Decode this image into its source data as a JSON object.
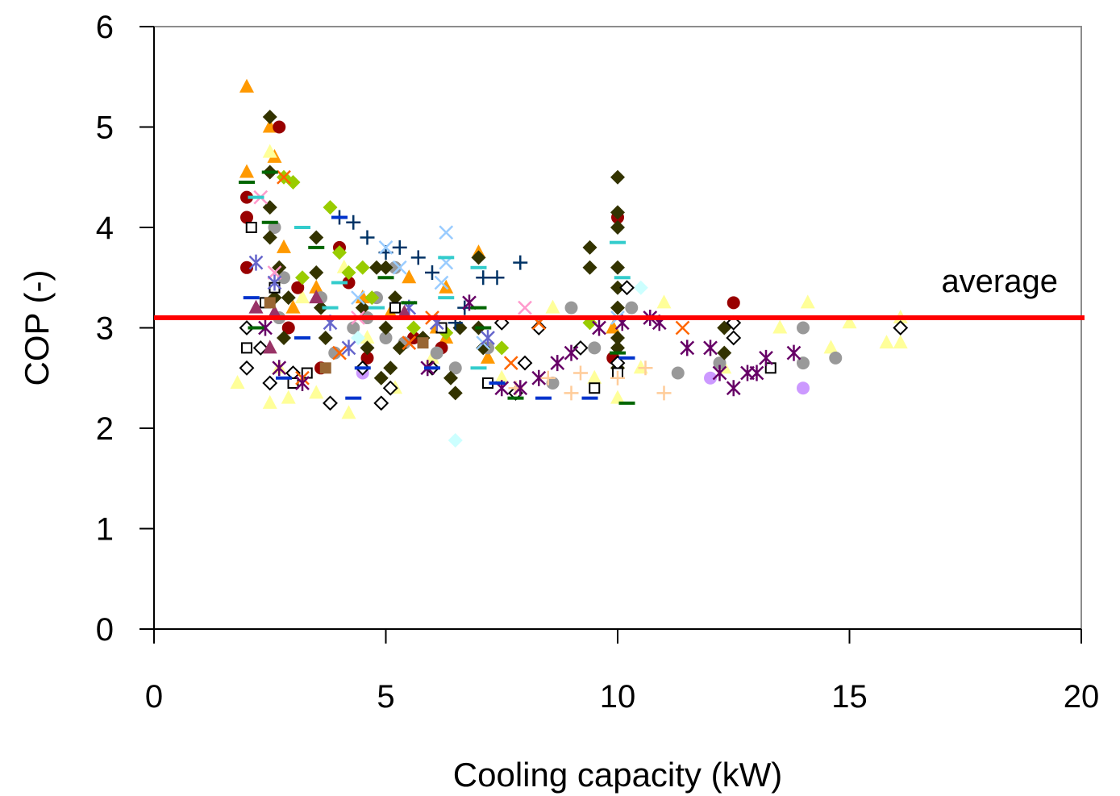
{
  "chart_data": {
    "type": "scatter",
    "title": "",
    "xlabel": "Cooling capacity (kW)",
    "ylabel": "COP (-)",
    "xlim": [
      0,
      20
    ],
    "ylim": [
      0,
      6
    ],
    "x_ticks": [
      "0",
      "5",
      "10",
      "15",
      "20"
    ],
    "y_ticks": [
      "0",
      "1",
      "2",
      "3",
      "4",
      "5",
      "6"
    ],
    "grid": false,
    "legend": "none",
    "reference_line": {
      "label": "average",
      "y": 3.1,
      "color": "#ff0000"
    },
    "series": [
      {
        "marker": "triangle",
        "color": "#ff9900",
        "points": [
          [
            2,
            5.4
          ],
          [
            2,
            4.55
          ],
          [
            2.5,
            5
          ],
          [
            2.6,
            4.7
          ],
          [
            3.5,
            3.4
          ],
          [
            4.5,
            3.3
          ],
          [
            5.1,
            3.15
          ],
          [
            6.3,
            3.4
          ],
          [
            6.3,
            2.9
          ],
          [
            7,
            3.75
          ],
          [
            7.2,
            2.7
          ],
          [
            6.1,
            3.0
          ],
          [
            3,
            3.2
          ],
          [
            9.9,
            3.0
          ],
          [
            2.8,
            3.8
          ],
          [
            5.5,
            3.5
          ]
        ]
      },
      {
        "marker": "triangle",
        "color": "#ffff99",
        "points": [
          [
            1.8,
            2.45
          ],
          [
            2.5,
            2.25
          ],
          [
            2.7,
            2.6
          ],
          [
            2.9,
            2.3
          ],
          [
            3.5,
            2.35
          ],
          [
            4.2,
            2.15
          ],
          [
            4.6,
            2.9
          ],
          [
            5.2,
            2.4
          ],
          [
            6,
            2.7
          ],
          [
            7.5,
            2.5
          ],
          [
            8.6,
            3.2
          ],
          [
            9.5,
            2.5
          ],
          [
            10,
            2.3
          ],
          [
            10.5,
            2.6
          ],
          [
            11,
            3.25
          ],
          [
            12.3,
            2.6
          ],
          [
            13.5,
            3.0
          ],
          [
            14.1,
            3.25
          ],
          [
            14.6,
            2.8
          ],
          [
            15,
            3.05
          ],
          [
            15.8,
            2.85
          ],
          [
            16.1,
            2.85
          ],
          [
            16.1,
            3.1
          ],
          [
            2.5,
            4.75
          ],
          [
            3.2,
            3.3
          ],
          [
            4.1,
            3.6
          ]
        ]
      },
      {
        "marker": "circle",
        "color": "#990000",
        "points": [
          [
            2,
            4.3
          ],
          [
            2,
            4.1
          ],
          [
            2,
            3.6
          ],
          [
            2.7,
            5.0
          ],
          [
            3.1,
            3.4
          ],
          [
            4,
            3.8
          ],
          [
            4.2,
            3.45
          ],
          [
            4.6,
            2.7
          ],
          [
            5.6,
            2.9
          ],
          [
            6.2,
            2.8
          ],
          [
            9.9,
            2.7
          ],
          [
            10,
            4.1
          ],
          [
            12.5,
            3.25
          ],
          [
            2.9,
            3.0
          ],
          [
            3.6,
            2.6
          ]
        ]
      },
      {
        "marker": "circle",
        "color": "#999999",
        "points": [
          [
            2.6,
            4.0
          ],
          [
            2.8,
            3.5
          ],
          [
            3.6,
            3.3
          ],
          [
            4.3,
            3.0
          ],
          [
            4.6,
            3.1
          ],
          [
            5,
            2.9
          ],
          [
            5.4,
            2.85
          ],
          [
            6.5,
            2.6
          ],
          [
            7.2,
            2.8
          ],
          [
            8.6,
            2.45
          ],
          [
            9,
            3.2
          ],
          [
            9.5,
            2.8
          ],
          [
            10.3,
            3.2
          ],
          [
            11.3,
            2.55
          ],
          [
            12.2,
            2.65
          ],
          [
            14,
            3.0
          ],
          [
            14,
            2.65
          ],
          [
            14.7,
            2.7
          ],
          [
            2.7,
            3.1
          ],
          [
            3.9,
            2.75
          ],
          [
            4.8,
            3.3
          ],
          [
            5.2,
            3.6
          ],
          [
            6.1,
            2.75
          ]
        ]
      },
      {
        "marker": "circle",
        "color": "#cc99ff",
        "points": [
          [
            12,
            2.5
          ],
          [
            14,
            2.4
          ],
          [
            4.5,
            2.55
          ]
        ]
      },
      {
        "marker": "diamond",
        "color": "#333300",
        "points": [
          [
            2.5,
            5.1
          ],
          [
            2.5,
            4.55
          ],
          [
            2.5,
            4.2
          ],
          [
            2.5,
            3.9
          ],
          [
            2.6,
            3.3
          ],
          [
            2.7,
            3.6
          ],
          [
            2.8,
            2.9
          ],
          [
            3.5,
            3.9
          ],
          [
            3.5,
            3.55
          ],
          [
            3.6,
            3.2
          ],
          [
            3.7,
            2.9
          ],
          [
            4.5,
            3.2
          ],
          [
            4.6,
            2.8
          ],
          [
            4.8,
            3.6
          ],
          [
            5,
            3.6
          ],
          [
            5,
            3.0
          ],
          [
            5.1,
            2.6
          ],
          [
            5.2,
            3.3
          ],
          [
            5.3,
            2.8
          ],
          [
            6.4,
            2.5
          ],
          [
            6.5,
            2.35
          ],
          [
            6.6,
            3.0
          ],
          [
            7,
            3.7
          ],
          [
            7,
            3.0
          ],
          [
            7.1,
            2.8
          ],
          [
            9.4,
            3.8
          ],
          [
            9.4,
            3.6
          ],
          [
            10,
            4.5
          ],
          [
            10,
            4.15
          ],
          [
            10,
            4.0
          ],
          [
            10,
            3.6
          ],
          [
            10,
            3.4
          ],
          [
            10,
            3.2
          ],
          [
            10,
            2.9
          ],
          [
            10,
            2.8
          ],
          [
            10,
            2.6
          ],
          [
            12.3,
            2.75
          ],
          [
            12.3,
            3.0
          ],
          [
            2.9,
            3.3
          ],
          [
            4.9,
            2.5
          ],
          [
            5.8,
            2.9
          ]
        ]
      },
      {
        "marker": "diamond",
        "color": "#99cc00",
        "points": [
          [
            2.8,
            4.5
          ],
          [
            3,
            4.45
          ],
          [
            3.8,
            4.2
          ],
          [
            4,
            3.75
          ],
          [
            4.2,
            3.55
          ],
          [
            4.5,
            3.6
          ],
          [
            5.6,
            3.0
          ],
          [
            6.3,
            2.95
          ],
          [
            7.5,
            2.8
          ],
          [
            9.4,
            3.05
          ],
          [
            4.7,
            3.3
          ],
          [
            3.2,
            3.5
          ]
        ]
      },
      {
        "marker": "diamond",
        "color": "#ccffff",
        "points": [
          [
            6.5,
            1.88
          ],
          [
            10.5,
            3.4
          ],
          [
            4.4,
            2.9
          ]
        ]
      },
      {
        "marker": "diamond-open",
        "color": "#000000",
        "points": [
          [
            2,
            3.0
          ],
          [
            2,
            2.6
          ],
          [
            2.5,
            2.45
          ],
          [
            3,
            2.55
          ],
          [
            3.8,
            2.25
          ],
          [
            4.5,
            2.6
          ],
          [
            4.9,
            2.25
          ],
          [
            5.1,
            2.4
          ],
          [
            7.5,
            3.05
          ],
          [
            7.8,
            2.35
          ],
          [
            8,
            2.65
          ],
          [
            8.3,
            3.0
          ],
          [
            9.2,
            2.8
          ],
          [
            10,
            2.65
          ],
          [
            10.2,
            3.4
          ],
          [
            12.5,
            2.9
          ],
          [
            12.5,
            3.05
          ],
          [
            16.1,
            3.0
          ],
          [
            2.3,
            2.8
          ],
          [
            6,
            2.6
          ]
        ]
      },
      {
        "marker": "square-open",
        "color": "#000000",
        "points": [
          [
            2,
            2.8
          ],
          [
            2.1,
            4.0
          ],
          [
            2.6,
            3.4
          ],
          [
            3,
            2.45
          ],
          [
            3.3,
            2.55
          ],
          [
            5.2,
            3.2
          ],
          [
            6.2,
            3.0
          ],
          [
            7.2,
            2.45
          ],
          [
            9.5,
            2.4
          ],
          [
            10,
            2.55
          ],
          [
            13.3,
            2.6
          ],
          [
            2.4,
            3.25
          ]
        ]
      },
      {
        "marker": "plus",
        "color": "#003366",
        "points": [
          [
            4,
            4.1
          ],
          [
            4.3,
            4.05
          ],
          [
            4.6,
            3.9
          ],
          [
            5,
            3.75
          ],
          [
            5.3,
            3.8
          ],
          [
            5.7,
            3.7
          ],
          [
            6,
            3.55
          ],
          [
            6.7,
            3.2
          ],
          [
            7.1,
            3.5
          ],
          [
            7.4,
            3.5
          ],
          [
            7.9,
            3.65
          ],
          [
            6.5,
            3.05
          ]
        ]
      },
      {
        "marker": "plus",
        "color": "#ffcc99",
        "points": [
          [
            8.5,
            2.5
          ],
          [
            9,
            2.35
          ],
          [
            9.2,
            2.55
          ],
          [
            10,
            2.5
          ],
          [
            11,
            2.35
          ],
          [
            7.8,
            2.4
          ],
          [
            10.6,
            2.6
          ]
        ]
      },
      {
        "marker": "cross",
        "color": "#99ccff",
        "points": [
          [
            6.3,
            3.95
          ],
          [
            6.3,
            3.65
          ],
          [
            6.2,
            3.45
          ],
          [
            5,
            3.8
          ],
          [
            5.3,
            3.6
          ],
          [
            4.4,
            3.3
          ],
          [
            10,
            3.1
          ],
          [
            7.1,
            2.85
          ]
        ]
      },
      {
        "marker": "cross",
        "color": "#ff6600",
        "points": [
          [
            2.8,
            4.5
          ],
          [
            3.2,
            2.5
          ],
          [
            4,
            2.75
          ],
          [
            5.5,
            2.85
          ],
          [
            6,
            3.1
          ],
          [
            8.3,
            3.05
          ],
          [
            11.4,
            3.0
          ],
          [
            7.7,
            2.65
          ]
        ]
      },
      {
        "marker": "cross",
        "color": "#ff99cc",
        "points": [
          [
            2.3,
            4.3
          ],
          [
            2.6,
            3.55
          ],
          [
            4.4,
            3.1
          ],
          [
            8,
            3.2
          ]
        ]
      },
      {
        "marker": "asterisk",
        "color": "#660066",
        "points": [
          [
            7.5,
            2.4
          ],
          [
            7.9,
            2.4
          ],
          [
            8.3,
            2.5
          ],
          [
            8.7,
            2.65
          ],
          [
            9,
            2.75
          ],
          [
            9.6,
            3.0
          ],
          [
            10.1,
            3.05
          ],
          [
            10.7,
            3.1
          ],
          [
            10.9,
            3.05
          ],
          [
            11.5,
            2.8
          ],
          [
            12,
            2.8
          ],
          [
            12.2,
            2.55
          ],
          [
            12.5,
            2.4
          ],
          [
            12.8,
            2.55
          ],
          [
            13,
            2.55
          ],
          [
            13.2,
            2.7
          ],
          [
            13.8,
            2.75
          ],
          [
            2.4,
            3.0
          ],
          [
            3.2,
            2.45
          ],
          [
            5.9,
            2.6
          ],
          [
            6.8,
            3.25
          ],
          [
            2.7,
            2.6
          ]
        ]
      },
      {
        "marker": "asterisk",
        "color": "#6666cc",
        "points": [
          [
            2.2,
            3.65
          ],
          [
            2.6,
            3.45
          ],
          [
            3.8,
            3.05
          ],
          [
            4.2,
            2.8
          ],
          [
            5.5,
            3.2
          ],
          [
            6.1,
            3.05
          ],
          [
            7.2,
            2.9
          ]
        ]
      },
      {
        "marker": "dash",
        "color": "#006600",
        "points": [
          [
            2,
            4.45
          ],
          [
            2.5,
            4.55
          ],
          [
            2.5,
            4.05
          ],
          [
            3.5,
            3.8
          ],
          [
            5,
            3.5
          ],
          [
            5.5,
            3.25
          ],
          [
            7,
            3.2
          ],
          [
            7.1,
            3.0
          ],
          [
            10,
            2.75
          ],
          [
            10.2,
            2.25
          ],
          [
            7.8,
            2.3
          ],
          [
            2.2,
            3.0
          ]
        ]
      },
      {
        "marker": "dash",
        "color": "#33cccc",
        "points": [
          [
            2.2,
            4.3
          ],
          [
            3.2,
            4.0
          ],
          [
            4,
            3.45
          ],
          [
            4.8,
            3.2
          ],
          [
            6.3,
            3.7
          ],
          [
            6.3,
            3.3
          ],
          [
            7,
            3.6
          ],
          [
            10,
            3.85
          ],
          [
            10.1,
            3.5
          ],
          [
            7,
            2.6
          ],
          [
            2.6,
            3.1
          ],
          [
            3.8,
            3.2
          ]
        ]
      },
      {
        "marker": "dash",
        "color": "#0033cc",
        "points": [
          [
            2.1,
            3.3
          ],
          [
            3.2,
            2.9
          ],
          [
            4,
            4.1
          ],
          [
            4.5,
            2.6
          ],
          [
            5.3,
            3.1
          ],
          [
            6,
            2.6
          ],
          [
            7.4,
            2.45
          ],
          [
            8.4,
            2.3
          ],
          [
            9.4,
            2.3
          ],
          [
            10.2,
            2.7
          ],
          [
            2.8,
            2.5
          ],
          [
            4.3,
            2.3
          ]
        ]
      },
      {
        "marker": "triangle",
        "color": "#993366",
        "points": [
          [
            2.2,
            3.2
          ],
          [
            2.6,
            3.15
          ],
          [
            3.5,
            3.3
          ],
          [
            5.4,
            3.15
          ],
          [
            2.5,
            2.8
          ]
        ]
      },
      {
        "marker": "square",
        "color": "#996633",
        "points": [
          [
            2.5,
            3.25
          ],
          [
            3.7,
            2.6
          ],
          [
            5.8,
            2.85
          ]
        ]
      }
    ]
  }
}
